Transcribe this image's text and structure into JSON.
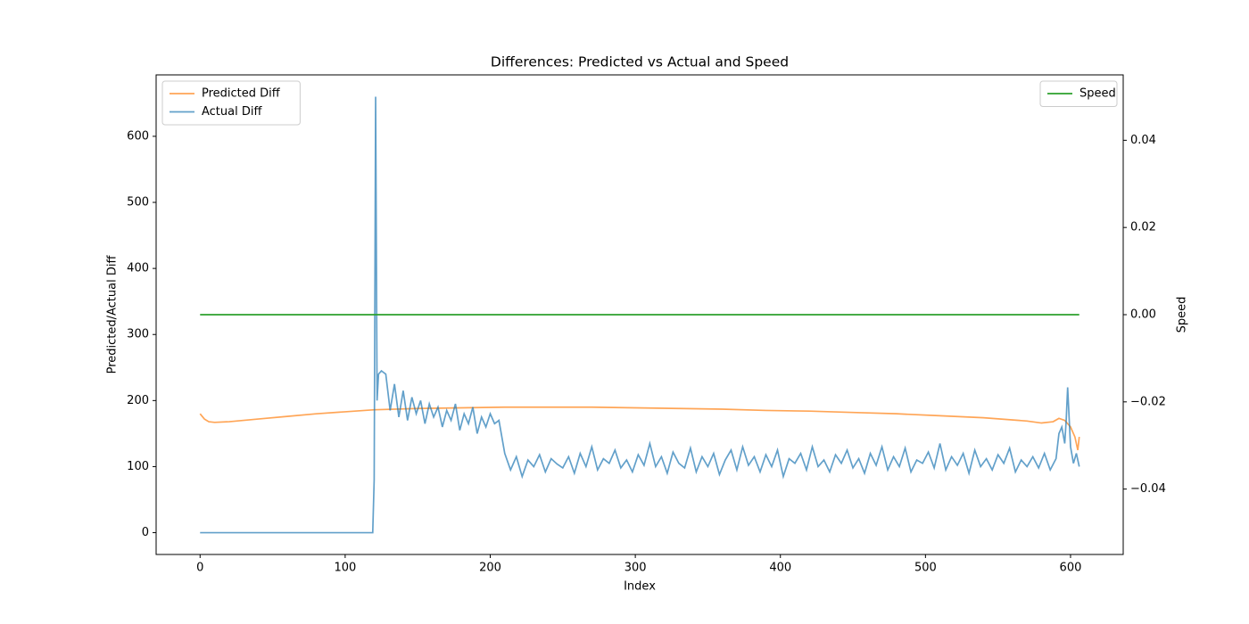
{
  "chart_data": {
    "type": "line",
    "title": "Differences: Predicted vs Actual and Speed",
    "x_label": "Index",
    "y_label": "Predicted/Actual Diff",
    "y2_label": "Speed",
    "xlim": [
      -30.3,
      636.3
    ],
    "xticks": [
      0,
      100,
      200,
      300,
      400,
      500,
      600
    ],
    "ylim": [
      -33,
      693
    ],
    "yticks": [
      0,
      100,
      200,
      300,
      400,
      500,
      600
    ],
    "y2lim": [
      -0.055,
      0.055
    ],
    "y2ticks": [
      {
        "value": -0.04,
        "label": "−0.04"
      },
      {
        "value": -0.02,
        "label": "−0.02"
      },
      {
        "value": 0,
        "label": "0.00"
      },
      {
        "value": 0.02,
        "label": "0.02"
      },
      {
        "value": 0.04,
        "label": "0.04"
      }
    ],
    "legend": "upper left",
    "legend2": "upper right",
    "series": [
      {
        "name": "Predicted Diff",
        "color": "#ff7f0e",
        "opacity": 0.7,
        "x": [
          0,
          3,
          6,
          10,
          20,
          40,
          60,
          80,
          100,
          120,
          150,
          180,
          210,
          240,
          270,
          300,
          330,
          360,
          390,
          420,
          450,
          480,
          510,
          540,
          570,
          580,
          588,
          592,
          596,
          600,
          603,
          605,
          606
        ],
        "values": [
          180,
          172,
          168,
          167,
          168,
          172,
          176,
          180,
          183,
          186,
          188,
          189,
          190,
          190,
          190,
          189,
          188,
          187,
          185,
          184,
          182,
          180,
          177,
          174,
          169,
          166,
          168,
          173,
          170,
          160,
          145,
          125,
          145
        ]
      },
      {
        "name": "Actual Diff",
        "color": "#1f77b4",
        "opacity": 0.7,
        "x": [
          0,
          119,
          120,
          121,
          122,
          123,
          125,
          128,
          131,
          134,
          137,
          140,
          143,
          146,
          149,
          152,
          155,
          158,
          161,
          164,
          167,
          170,
          173,
          176,
          179,
          182,
          185,
          188,
          191,
          194,
          197,
          200,
          203,
          206,
          210,
          214,
          218,
          222,
          226,
          230,
          234,
          238,
          242,
          246,
          250,
          254,
          258,
          262,
          266,
          270,
          274,
          278,
          282,
          286,
          290,
          294,
          298,
          302,
          306,
          310,
          314,
          318,
          322,
          326,
          330,
          334,
          338,
          342,
          346,
          350,
          354,
          358,
          362,
          366,
          370,
          374,
          378,
          382,
          386,
          390,
          394,
          398,
          402,
          406,
          410,
          414,
          418,
          422,
          426,
          430,
          434,
          438,
          442,
          446,
          450,
          454,
          458,
          462,
          466,
          470,
          474,
          478,
          482,
          486,
          490,
          494,
          498,
          502,
          506,
          510,
          514,
          518,
          522,
          526,
          530,
          534,
          538,
          542,
          546,
          550,
          554,
          558,
          562,
          566,
          570,
          574,
          578,
          582,
          586,
          590,
          592,
          594,
          596,
          597,
          598,
          600,
          602,
          604,
          606
        ],
        "values": [
          0,
          0,
          80,
          660,
          200,
          240,
          245,
          240,
          185,
          225,
          175,
          215,
          170,
          205,
          180,
          200,
          165,
          195,
          175,
          190,
          160,
          185,
          170,
          195,
          155,
          180,
          165,
          190,
          150,
          175,
          160,
          180,
          165,
          170,
          120,
          95,
          115,
          85,
          110,
          100,
          118,
          92,
          112,
          104,
          98,
          115,
          90,
          120,
          100,
          130,
          95,
          112,
          105,
          125,
          98,
          110,
          92,
          118,
          102,
          135,
          100,
          115,
          90,
          122,
          105,
          98,
          128,
          92,
          115,
          100,
          120,
          88,
          110,
          125,
          95,
          130,
          102,
          115,
          92,
          118,
          100,
          125,
          85,
          112,
          105,
          120,
          95,
          130,
          100,
          110,
          92,
          118,
          105,
          125,
          98,
          112,
          90,
          120,
          102,
          130,
          95,
          115,
          100,
          128,
          92,
          110,
          105,
          122,
          98,
          135,
          95,
          115,
          102,
          120,
          90,
          125,
          100,
          112,
          95,
          118,
          105,
          128,
          92,
          110,
          100,
          115,
          98,
          120,
          95,
          112,
          150,
          160,
          135,
          170,
          220,
          130,
          105,
          120,
          100
        ]
      },
      {
        "name": "Speed",
        "color": "#2ca02c",
        "opacity": 1,
        "axis": "y2",
        "x": [
          0,
          606
        ],
        "values": [
          0,
          0
        ]
      }
    ]
  }
}
